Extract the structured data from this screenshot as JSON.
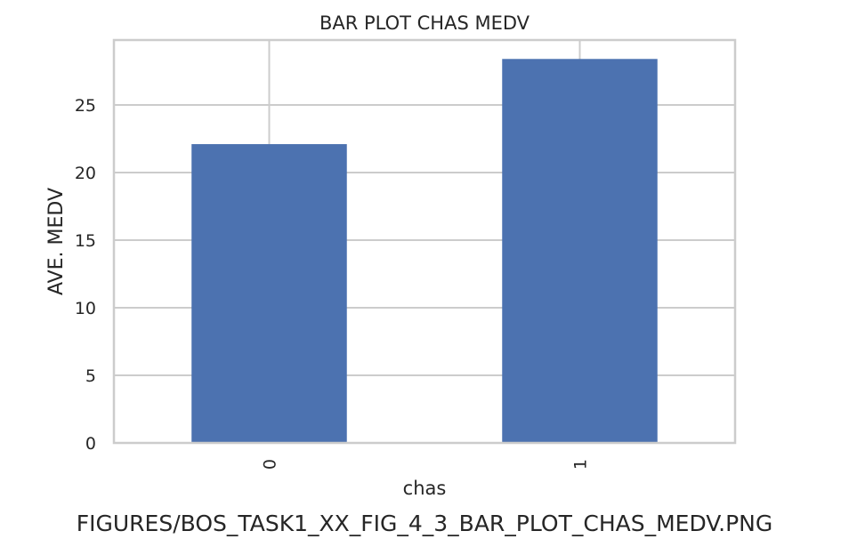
{
  "chart_data": {
    "type": "bar",
    "title": "BAR PLOT CHAS MEDV",
    "xlabel": "chas",
    "ylabel": "AVE. MEDV",
    "categories": [
      "0",
      "1"
    ],
    "values": [
      22.1,
      28.4
    ],
    "ylim": [
      0,
      29.8
    ],
    "yticks": [
      "0",
      "5",
      "10",
      "15",
      "20",
      "25"
    ],
    "grid": true,
    "legend": "none",
    "bar_color": "#4c72b0",
    "grid_color": "#cccccc"
  },
  "caption": "FIGURES/BOS_TASK1_XX_FIG_4_3_BAR_PLOT_CHAS_MEDV.PNG"
}
